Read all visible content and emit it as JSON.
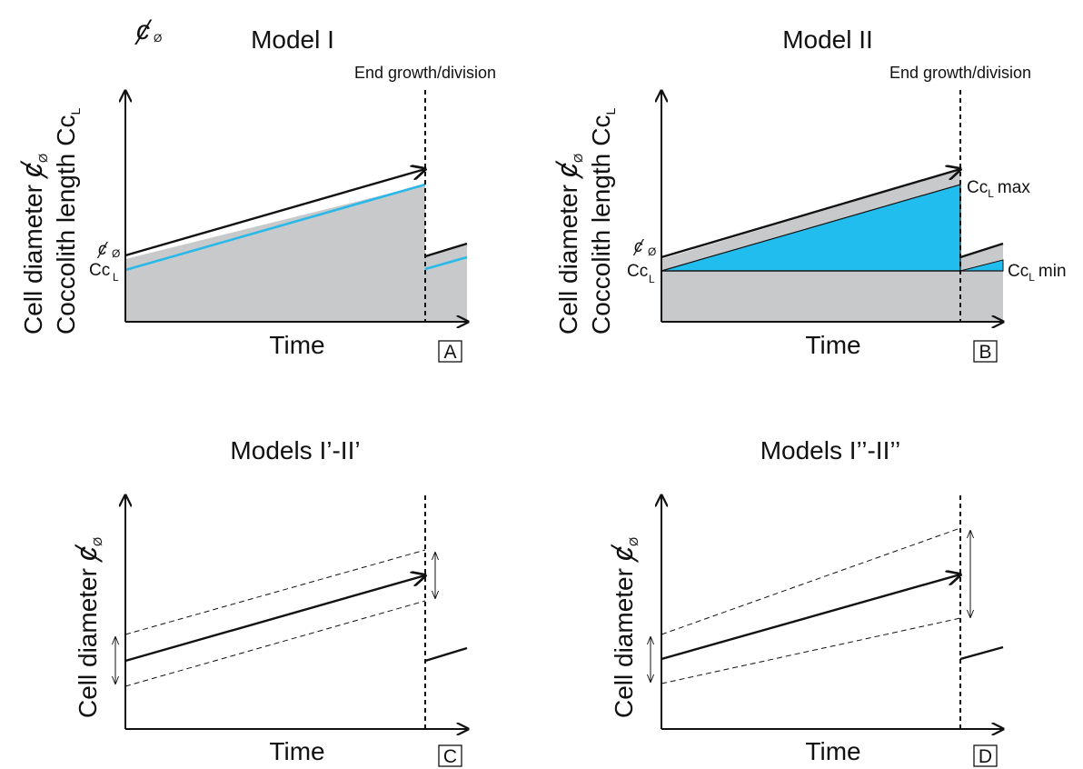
{
  "legend_symbol": "ȼ",
  "legend_sub": "Ø",
  "panels": {
    "A": {
      "title": "Model I",
      "end_label": "End growth/division",
      "xlabel": "Time",
      "ylabel_line1": "Cell diameter",
      "ylabel_line2": "Coccolith length",
      "ylabel_cc": "Cc",
      "ylabel_cc_sub": "L",
      "diam_symbol": "ȼ",
      "diam_sub": "Ø",
      "tick_diam": "ȼ",
      "tick_diam_sub": "Ø",
      "tick_cc": "Cc",
      "tick_cc_sub": "L",
      "letter": "A"
    },
    "B": {
      "title": "Model II",
      "end_label": "End growth/division",
      "xlabel": "Time",
      "ylabel_line1": "Cell diameter",
      "ylabel_line2": "Coccolith length",
      "ylabel_cc": "Cc",
      "ylabel_cc_sub": "L",
      "diam_symbol": "ȼ",
      "diam_sub": "Ø",
      "tick_diam": "ȼ",
      "tick_diam_sub": "Ø",
      "tick_cc": "Cc",
      "tick_cc_sub": "L",
      "max_cc": "Cc",
      "max_sub": "L",
      "max_word": "max",
      "min_cc": "Cc",
      "min_sub": "L",
      "min_word": "min",
      "letter": "B"
    },
    "C": {
      "title": "Models I’-II’",
      "xlabel": "Time",
      "ylabel": "Cell diameter",
      "diam_symbol": "ȼ",
      "diam_sub": "Ø",
      "letter": "C"
    },
    "D": {
      "title": "Models I’’-II’’",
      "xlabel": "Time",
      "ylabel": "Cell diameter",
      "diam_symbol": "ȼ",
      "diam_sub": "Ø",
      "letter": "D"
    }
  },
  "colors": {
    "cell_fill": "#c8c9cb",
    "coccolith_line": "#29b8e8",
    "coccolith_fill": "#22bdef",
    "ink": "#111111"
  }
}
